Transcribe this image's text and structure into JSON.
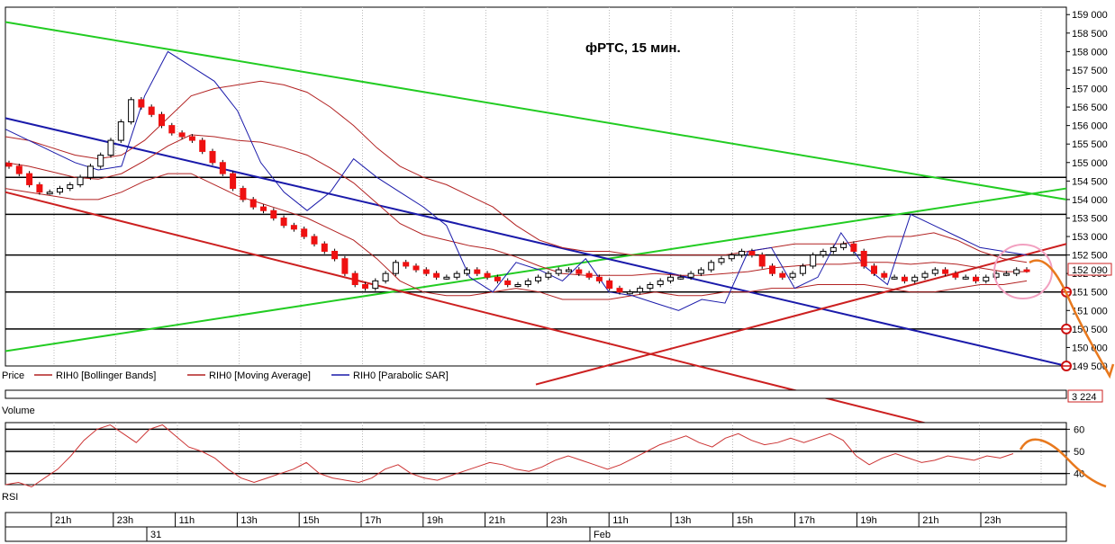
{
  "chart_data": [
    {
      "type": "candlestick",
      "title": "фРТС,   15 мин.",
      "y_ticks": [
        "159 000",
        "158 500",
        "158 000",
        "157 500",
        "157 000",
        "156 500",
        "156 000",
        "155 500",
        "155 000",
        "154 500",
        "154 000",
        "153 500",
        "153 000",
        "152 500",
        "152 000",
        "151 500",
        "151 000",
        "150 500",
        "150 000",
        "149 500"
      ],
      "ylim": [
        149500,
        159200
      ],
      "last_price_label": "152 090",
      "last_price": 152090,
      "legend": [
        "Price",
        "RIH0 [Bollinger Bands]",
        "RIH0 [Moving Average]",
        "RIH0 [Parabolic SAR]"
      ],
      "horizontal_levels": [
        154600,
        153600,
        152500,
        151500,
        150500
      ],
      "level_markers": [
        151500,
        150500,
        149500
      ],
      "close_series": [
        154900,
        154700,
        154400,
        154200,
        154200,
        154300,
        154400,
        154600,
        154900,
        155200,
        155600,
        156100,
        156700,
        156500,
        156300,
        156000,
        155800,
        155700,
        155600,
        155300,
        155000,
        154700,
        154300,
        154000,
        153800,
        153700,
        153500,
        153300,
        153200,
        153000,
        152800,
        152600,
        152400,
        152000,
        151700,
        151600,
        151800,
        152000,
        152300,
        152200,
        152100,
        152000,
        151900,
        151900,
        152000,
        152100,
        152000,
        151900,
        151800,
        151700,
        151700,
        151800,
        151900,
        152000,
        152100,
        152100,
        152000,
        151900,
        151800,
        151600,
        151500,
        151500,
        151600,
        151700,
        151800,
        151900,
        151900,
        152000,
        152100,
        152300,
        152400,
        152500,
        152600,
        152500,
        152200,
        152000,
        151900,
        152000,
        152200,
        152500,
        152600,
        152700,
        152800,
        152600,
        152200,
        152000,
        151900,
        151900,
        151800,
        151900,
        152000,
        152100,
        152000,
        151900,
        151900,
        151800,
        151900,
        152000,
        152000,
        152100,
        152090
      ],
      "bollinger_upper": [
        155700,
        155600,
        155400,
        155200,
        155100,
        155200,
        155600,
        156200,
        156800,
        157000,
        157100,
        157200,
        157100,
        156900,
        156500,
        156000,
        155400,
        154900,
        154600,
        154400,
        154100,
        153800,
        153300,
        152900,
        152700,
        152600,
        152600,
        152500,
        152500,
        152500,
        152500,
        152500,
        152600,
        152700,
        152800,
        152800,
        152800,
        152900,
        153000,
        153000,
        153100,
        152900,
        152600,
        152400,
        152300
      ],
      "bollinger_lower": [
        154300,
        154200,
        154100,
        154000,
        154000,
        154200,
        154500,
        154700,
        154700,
        154400,
        154100,
        153900,
        153700,
        153500,
        153200,
        152900,
        152400,
        151800,
        151500,
        151400,
        151400,
        151500,
        151600,
        151500,
        151300,
        151300,
        151300,
        151400,
        151500,
        151400,
        151400,
        151500,
        151500,
        151600,
        151600,
        151700,
        151700,
        151700,
        151600,
        151500,
        151500,
        151600,
        151700,
        151700,
        151800
      ],
      "parabolic_sar": [
        155900,
        155600,
        155300,
        155000,
        154800,
        154900,
        156800,
        158000,
        157600,
        157200,
        156400,
        155000,
        154200,
        153700,
        154200,
        155100,
        154600,
        154200,
        153800,
        153300,
        151900,
        151500,
        152300,
        152100,
        151800,
        152400,
        151500,
        151400,
        151200,
        151000,
        151300,
        151200,
        152600,
        152700,
        151600,
        151900,
        153100,
        152200,
        151700,
        153600,
        153300,
        153000,
        152700,
        152600,
        152500
      ],
      "trendlines": [
        {
          "color": "#22cc22",
          "from": [
            0,
            158800
          ],
          "to": [
            100,
            154000
          ]
        },
        {
          "color": "#22cc22",
          "from": [
            0,
            149900
          ],
          "to": [
            100,
            154300
          ]
        },
        {
          "color": "#1a1aaa",
          "from": [
            0,
            156200
          ],
          "to": [
            100,
            149500
          ]
        },
        {
          "color": "#cc2020",
          "from": [
            0,
            154200
          ],
          "to": [
            100,
            147000
          ]
        },
        {
          "color": "#cc2020",
          "from": [
            50,
            149000
          ],
          "to": [
            100,
            152800
          ]
        }
      ]
    },
    {
      "type": "bar",
      "title": "Volume",
      "last_value_label": "3 224"
    },
    {
      "type": "line",
      "title": "RSI",
      "y_ticks": [
        "60",
        "50",
        "40"
      ],
      "ylim": [
        35,
        63
      ],
      "levels": [
        60,
        50,
        40
      ],
      "values": [
        35,
        36,
        34,
        38,
        42,
        48,
        55,
        60,
        62,
        58,
        54,
        60,
        62,
        57,
        52,
        50,
        47,
        42,
        38,
        36,
        38,
        40,
        42,
        45,
        40,
        38,
        37,
        36,
        38,
        42,
        44,
        40,
        38,
        37,
        39,
        41,
        43,
        45,
        44,
        42,
        41,
        43,
        46,
        48,
        46,
        44,
        42,
        44,
        47,
        50,
        53,
        55,
        57,
        54,
        52,
        56,
        58,
        55,
        53,
        54,
        56,
        54,
        56,
        58,
        55,
        48,
        44,
        47,
        49,
        47,
        45,
        46,
        48,
        47,
        46,
        48,
        47,
        49
      ],
      "line_color": "#cc3333"
    }
  ],
  "time_axis": {
    "hour_labels": [
      "21h",
      "23h",
      "11h",
      "13h",
      "15h",
      "17h",
      "19h",
      "21h",
      "23h",
      "11h",
      "13h",
      "15h",
      "17h",
      "19h",
      "21h",
      "23h"
    ],
    "day_labels": [
      "31",
      "Feb"
    ]
  },
  "annotations": {
    "forecast_arrow_color": "#e8791e",
    "highlight_circle_color": "#f2a0c0"
  },
  "colors": {
    "candle_down": "#ee1111",
    "candle_up": "#ffffff",
    "bollinger": "#b22222",
    "sar": "#1a1aaa",
    "grid": "#bbbbbb"
  }
}
